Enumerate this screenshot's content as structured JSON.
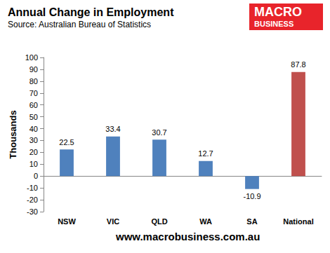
{
  "chart_data": {
    "type": "bar",
    "title": "Annual Change in Employment",
    "subtitle": "Source: Australian Bureau of Statistics",
    "y_label": "Thousands",
    "categories": [
      "NSW",
      "VIC",
      "QLD",
      "WA",
      "SA",
      "National"
    ],
    "values": [
      22.5,
      33.4,
      30.7,
      12.7,
      -10.9,
      87.8
    ],
    "colors": [
      "#4f81bd",
      "#4f81bd",
      "#4f81bd",
      "#4f81bd",
      "#4f81bd",
      "#c0504d"
    ],
    "ylim": [
      -30,
      100
    ],
    "yticks": [
      -30,
      -20,
      -10,
      0,
      10,
      20,
      30,
      40,
      50,
      60,
      70,
      80,
      90,
      100
    ],
    "grid": false,
    "data_labels": true,
    "annotations": [
      "MACRO",
      "BUSINESS",
      "www.macrobusiness.com.au"
    ]
  }
}
